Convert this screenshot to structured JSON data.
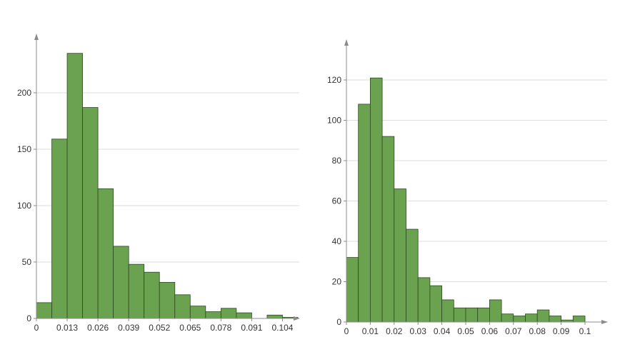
{
  "chart_data": [
    {
      "type": "bar",
      "subtype": "histogram",
      "bin_width": 0.0065,
      "bin_starts": [
        0,
        0.0065,
        0.013,
        0.0195,
        0.026,
        0.0325,
        0.039,
        0.0455,
        0.052,
        0.0585,
        0.065,
        0.0715,
        0.078,
        0.0845,
        0.091,
        0.0975,
        0.104
      ],
      "values": [
        14,
        159,
        235,
        187,
        115,
        64,
        48,
        41,
        32,
        21,
        11,
        6,
        9,
        5,
        0,
        3,
        1
      ],
      "xlim": [
        0,
        0.1105
      ],
      "ylim": [
        0,
        250
      ],
      "x_ticks": [
        0,
        0.013,
        0.026,
        0.039,
        0.052,
        0.065,
        0.078,
        0.091,
        0.104
      ],
      "x_tick_labels": [
        "0",
        "0.013",
        "0.026",
        "0.039",
        "0.052",
        "0.065",
        "0.078",
        "0.091",
        "0.104"
      ],
      "y_ticks": [
        0,
        50,
        100,
        150,
        200
      ],
      "y_tick_labels": [
        "0",
        "50",
        "100",
        "150",
        "200"
      ],
      "grid": "horizontal",
      "bar_color": "#6aa250",
      "edge_color": "#2e4a22",
      "title": "",
      "xlabel": "",
      "ylabel": ""
    },
    {
      "type": "bar",
      "subtype": "histogram",
      "bin_width": 0.005,
      "bin_starts": [
        0,
        0.005,
        0.01,
        0.015,
        0.02,
        0.025,
        0.03,
        0.035,
        0.04,
        0.045,
        0.05,
        0.055,
        0.06,
        0.065,
        0.07,
        0.075,
        0.08,
        0.085,
        0.09,
        0.095
      ],
      "values": [
        32,
        108,
        121,
        92,
        66,
        46,
        22,
        18,
        11,
        7,
        7,
        7,
        11,
        4,
        3,
        4,
        6,
        3,
        1,
        3
      ],
      "xlim": [
        0,
        0.1
      ],
      "ylim": [
        0,
        140
      ],
      "x_ticks": [
        0,
        0.01,
        0.02,
        0.03,
        0.04,
        0.05,
        0.06,
        0.07,
        0.08,
        0.09,
        0.1
      ],
      "x_tick_labels": [
        "0",
        "0.01",
        "0.02",
        "0.03",
        "0.04",
        "0.05",
        "0.06",
        "0.07",
        "0.08",
        "0.09",
        "0.1"
      ],
      "y_ticks": [
        0,
        20,
        40,
        60,
        80,
        100,
        120
      ],
      "y_tick_labels": [
        "0",
        "20",
        "40",
        "60",
        "80",
        "100",
        "120"
      ],
      "grid": "horizontal",
      "bar_color": "#6aa250",
      "edge_color": "#2e4a22",
      "title": "",
      "xlabel": "",
      "ylabel": ""
    }
  ]
}
